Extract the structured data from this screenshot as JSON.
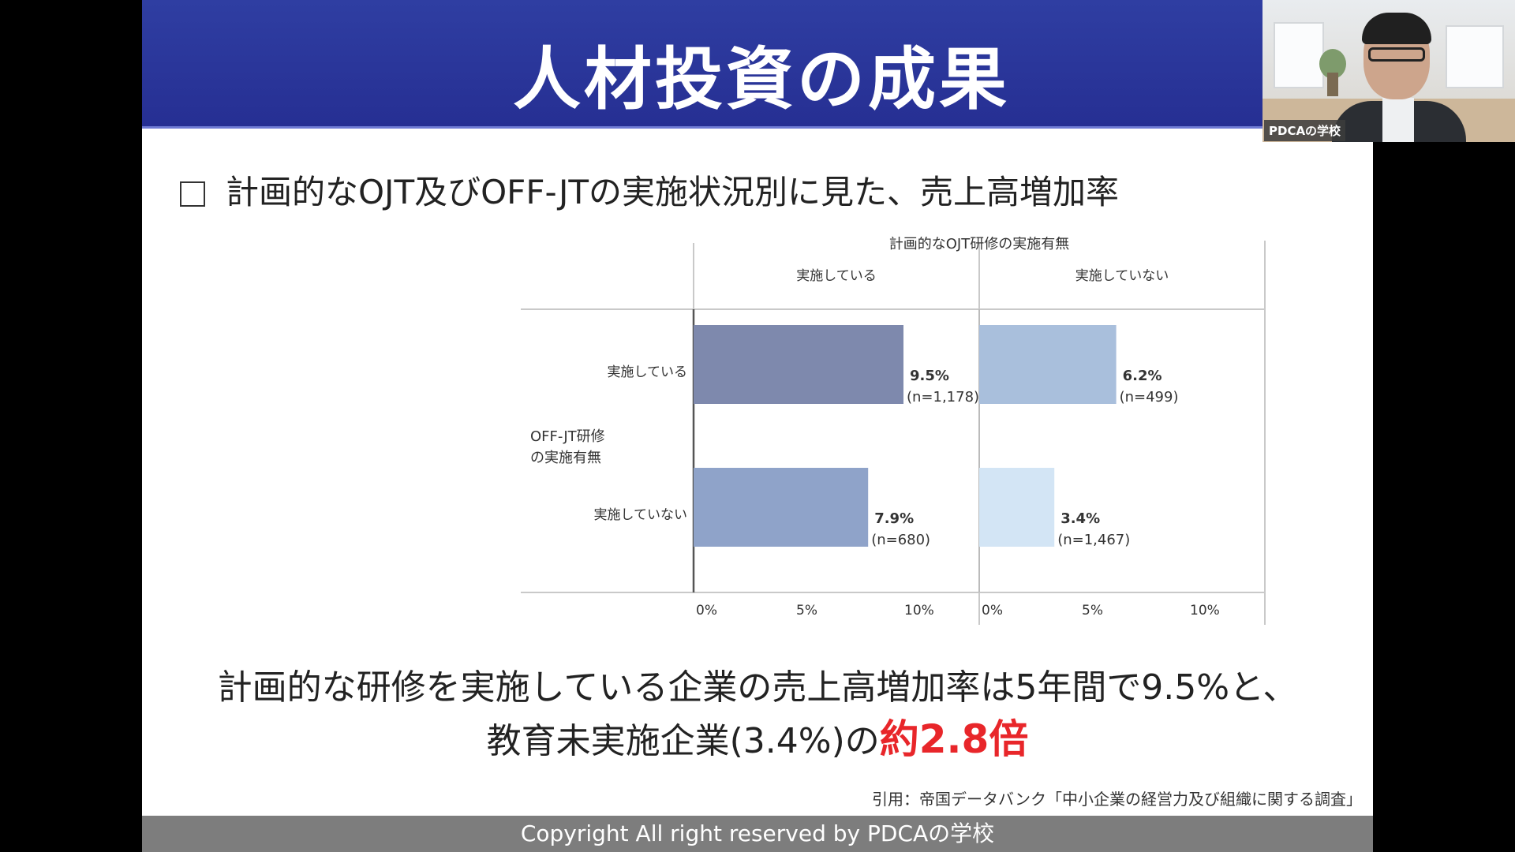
{
  "slide": {
    "title": "人材投資の成果",
    "subtitle": "計画的なOJT及びOFF-JTの実施状況別に見た、売上高増加率",
    "conclusion_line1": "計画的な研修を実施している企業の売上高増加率は5年間で9.5%と、",
    "conclusion_line2_prefix": "教育未実施企業(3.4%)の",
    "conclusion_line2_highlight": "約2.8倍",
    "citation": "引用：帝国データバンク「中小企業の経営力及び組織に関する調査」",
    "footer": "Copyright All right reserved by PDCAの学校",
    "colors": {
      "title_bar": "#2a3598",
      "highlight": "#e8262a",
      "footer_bg": "#7d7d7d"
    }
  },
  "webcam": {
    "label": "PDCAの学校"
  },
  "chart_data": {
    "type": "bar",
    "orientation": "horizontal",
    "title": "計画的なOJT研修の実施有無",
    "column_facets": [
      "実施している",
      "実施していない"
    ],
    "row_axis_label": "OFF-JT研修\nの実施有無",
    "row_axis_label_lines": [
      "OFF-JT研修",
      "の実施有無"
    ],
    "categories": [
      "実施している",
      "実施していない"
    ],
    "xlim": [
      0,
      10
    ],
    "x_ticks": [
      "0%",
      "5%",
      "10%"
    ],
    "x_tick_values": [
      0,
      5,
      10
    ],
    "grid": false,
    "panels": [
      {
        "facet": "実施している",
        "bars": [
          {
            "category": "実施している",
            "value": 9.5,
            "label": "9.5%",
            "n": "(n=1,178)",
            "color": "#7e89ad"
          },
          {
            "category": "実施していない",
            "value": 7.9,
            "label": "7.9%",
            "n": "(n=680)",
            "color": "#8fa3c9"
          }
        ]
      },
      {
        "facet": "実施していない",
        "bars": [
          {
            "category": "実施している",
            "value": 6.2,
            "label": "6.2%",
            "n": "(n=499)",
            "color": "#a9bfdc"
          },
          {
            "category": "実施していない",
            "value": 3.4,
            "label": "3.4%",
            "n": "(n=1,467)",
            "color": "#d3e5f5"
          }
        ]
      }
    ]
  }
}
